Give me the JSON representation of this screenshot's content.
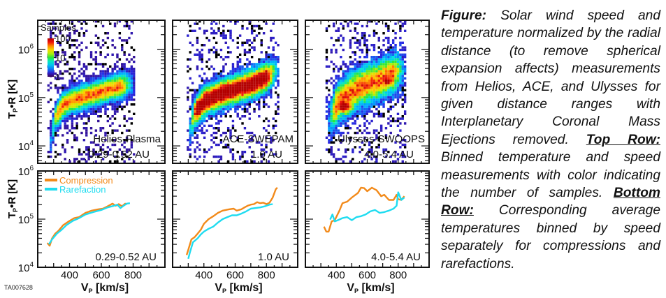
{
  "figure_id": "TA007628",
  "caption": {
    "lead": "Figure:",
    "text1": " Solar wind speed and temperature normalized by the radial distance (to remove spherical expansion affects) measurements from Helios, ACE, and Ulysses for given distance ranges with Interplanetary Coronal Mass Ejections removed. ",
    "top_row_label": "Top Row:",
    "text2": " Binned temperature and speed measurements with color indicating the number of samples. ",
    "bottom_row_label": "Bottom Row:",
    "text3": " Corresponding average temperatures binned by speed separately for compressions and rarefactions."
  },
  "colors": {
    "compression": "#f28a1a",
    "rarefaction": "#1fdcf0",
    "axis": "#111111"
  },
  "chart_data": [
    {
      "type": "heatmap",
      "panel": "top-left",
      "title": "Helios-Plasma",
      "subtitle": "0.29-0.52 AU",
      "xlabel": "",
      "ylabel": "Tp•R [K]",
      "xlim": [
        200,
        1000
      ],
      "ylim_log10": [
        3.64,
        6.6
      ],
      "y_ticks": [
        "10^4",
        "10^5",
        "10^6"
      ],
      "colorbar": {
        "label": "Samples",
        "ticks": [
          "1",
          "10",
          "100"
        ],
        "scale": "log",
        "range": [
          1,
          100
        ]
      },
      "ridge": [
        [
          270,
          4.0
        ],
        [
          300,
          4.6
        ],
        [
          350,
          4.85
        ],
        [
          400,
          4.95
        ],
        [
          500,
          5.05
        ],
        [
          600,
          5.15
        ],
        [
          700,
          5.25
        ],
        [
          780,
          5.3
        ]
      ],
      "peak_counts": 60,
      "width_log": 0.22
    },
    {
      "type": "heatmap",
      "panel": "top-middle",
      "title": "ACE-SWEPAM",
      "subtitle": "1.0 AU",
      "xlim": [
        200,
        1000
      ],
      "ylim_log10": [
        3.64,
        6.6
      ],
      "ridge": [
        [
          300,
          4.3
        ],
        [
          330,
          4.7
        ],
        [
          400,
          4.95
        ],
        [
          500,
          5.1
        ],
        [
          600,
          5.2
        ],
        [
          700,
          5.3
        ],
        [
          800,
          5.45
        ],
        [
          850,
          5.6
        ]
      ],
      "peak_counts": 100,
      "width_log": 0.25
    },
    {
      "type": "heatmap",
      "panel": "top-right",
      "title": "Ulysses-SWOOPS",
      "subtitle": "4.0-5.4 AU",
      "xlim": [
        200,
        1000
      ],
      "ylim_log10": [
        3.64,
        6.6
      ],
      "ridge": [
        [
          340,
          4.5
        ],
        [
          400,
          4.9
        ],
        [
          450,
          5.05
        ],
        [
          550,
          5.25
        ],
        [
          650,
          5.35
        ],
        [
          750,
          5.5
        ],
        [
          820,
          5.6
        ]
      ],
      "peak_counts": 100,
      "width_log": 0.35
    },
    {
      "type": "line",
      "panel": "bottom-left",
      "subtitle": "0.29-0.52 AU",
      "xlabel": "VP [km/s]",
      "ylabel": "Tp•R [K]",
      "xlim": [
        200,
        1000
      ],
      "x_ticks": [
        400,
        600,
        800
      ],
      "ylim": [
        10000,
        1000000
      ],
      "yscale": "log",
      "legend": {
        "position": "top-left",
        "entries": [
          "Compression",
          "Rarefaction"
        ]
      },
      "series": [
        {
          "name": "Compression",
          "x": [
            260,
            275,
            290,
            310,
            330,
            360,
            400,
            430,
            460,
            500,
            540,
            580,
            610,
            640,
            670,
            690,
            710,
            730,
            750,
            760
          ],
          "y": [
            32000,
            28000,
            40000,
            50000,
            57000,
            75000,
            92000,
            105000,
            110000,
            135000,
            150000,
            160000,
            165000,
            185000,
            210000,
            190000,
            205000,
            185000,
            210000,
            200000
          ]
        },
        {
          "name": "Rarefaction",
          "x": [
            270,
            290,
            320,
            350,
            380,
            420,
            460,
            500,
            550,
            600,
            640,
            680,
            700,
            720,
            740,
            760,
            780
          ],
          "y": [
            30000,
            38000,
            50000,
            60000,
            75000,
            92000,
            105000,
            125000,
            140000,
            155000,
            175000,
            190000,
            200000,
            170000,
            190000,
            210000,
            215000
          ]
        }
      ]
    },
    {
      "type": "line",
      "panel": "bottom-middle",
      "subtitle": "1.0 AU",
      "xlabel": "VP [km/s]",
      "xlim": [
        200,
        1000
      ],
      "x_ticks": [
        400,
        600,
        800
      ],
      "ylim": [
        10000,
        1000000
      ],
      "yscale": "log",
      "series": [
        {
          "name": "Compression",
          "x": [
            290,
            300,
            320,
            340,
            360,
            380,
            400,
            430,
            460,
            490,
            520,
            560,
            590,
            610,
            640,
            660,
            680,
            700,
            720,
            740,
            760,
            780,
            800,
            820,
            840,
            860,
            870
          ],
          "y": [
            18000,
            23000,
            38000,
            42000,
            50000,
            60000,
            80000,
            100000,
            115000,
            135000,
            150000,
            160000,
            165000,
            150000,
            160000,
            175000,
            190000,
            200000,
            205000,
            225000,
            215000,
            220000,
            205000,
            220000,
            280000,
            420000,
            450000
          ]
        },
        {
          "name": "Rarefaction",
          "x": [
            300,
            310,
            330,
            360,
            380,
            400,
            430,
            460,
            490,
            520,
            550,
            580,
            610,
            640,
            670,
            700,
            730,
            760,
            790,
            820,
            840
          ],
          "y": [
            15000,
            20000,
            33000,
            40000,
            48000,
            55000,
            63000,
            70000,
            85000,
            100000,
            110000,
            120000,
            120000,
            130000,
            145000,
            165000,
            170000,
            175000,
            185000,
            200000,
            205000
          ]
        }
      ]
    },
    {
      "type": "line",
      "panel": "bottom-right",
      "subtitle": "4.0-5.4 AU",
      "xlabel": "VP [km/s]",
      "xlim": [
        200,
        1000
      ],
      "x_ticks": [
        400,
        600,
        800
      ],
      "ylim": [
        10000,
        1000000
      ],
      "yscale": "log",
      "series": [
        {
          "name": "Compression",
          "x": [
            320,
            335,
            350,
            370,
            390,
            420,
            440,
            470,
            500,
            540,
            560,
            580,
            600,
            630,
            660,
            690,
            710,
            740,
            770,
            790,
            800,
            820,
            840
          ],
          "y": [
            70000,
            55000,
            55000,
            90000,
            95000,
            150000,
            215000,
            230000,
            280000,
            350000,
            450000,
            440000,
            380000,
            450000,
            400000,
            300000,
            320000,
            250000,
            250000,
            320000,
            260000,
            250000,
            300000
          ]
        },
        {
          "name": "Rarefaction",
          "x": [
            360,
            375,
            390,
            410,
            440,
            470,
            500,
            530,
            560,
            590,
            620,
            650,
            680,
            710,
            740,
            770,
            790,
            800,
            820,
            840
          ],
          "y": [
            98000,
            125000,
            90000,
            95000,
            105000,
            110000,
            95000,
            110000,
            115000,
            125000,
            145000,
            155000,
            135000,
            140000,
            150000,
            165000,
            190000,
            360000,
            250000,
            280000
          ]
        }
      ]
    }
  ]
}
